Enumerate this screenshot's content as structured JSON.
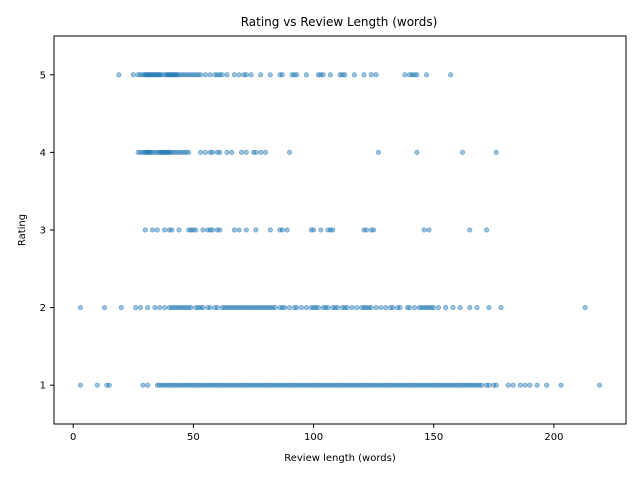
{
  "chart_data": {
    "type": "scatter",
    "title": "Rating vs Review Length (words)",
    "xlabel": "Review length (words)",
    "ylabel": "Rating",
    "xlim": [
      -8,
      230
    ],
    "ylim": [
      0.5,
      5.5
    ],
    "xticks": [
      "0",
      "50",
      "100",
      "150",
      "200"
    ],
    "yticks": [
      "1",
      "2",
      "3",
      "4",
      "5"
    ],
    "grid": false,
    "legend": "none",
    "point_color": "#1f77b4",
    "point_alpha": 0.45,
    "series": [
      {
        "rating": 5,
        "x": [
          19,
          25,
          27,
          28,
          29,
          30,
          30,
          31,
          31,
          32,
          32,
          33,
          33,
          34,
          34,
          35,
          35,
          36,
          36,
          37,
          38,
          39,
          39,
          40,
          40,
          41,
          41,
          42,
          42,
          43,
          43,
          44,
          45,
          46,
          47,
          48,
          49,
          50,
          51,
          52,
          53,
          55,
          57,
          59,
          60,
          61,
          62,
          64,
          67,
          69,
          71,
          72,
          74,
          78,
          82,
          86,
          87,
          91,
          92,
          93,
          97,
          102,
          103,
          104,
          107,
          111,
          112,
          113,
          117,
          121,
          124,
          126,
          138,
          140,
          141,
          142,
          143,
          147,
          157
        ]
      },
      {
        "rating": 4,
        "x": [
          27,
          28,
          29,
          30,
          30,
          31,
          31,
          32,
          32,
          33,
          34,
          35,
          36,
          36,
          37,
          37,
          38,
          38,
          39,
          39,
          40,
          40,
          41,
          42,
          43,
          44,
          45,
          46,
          47,
          48,
          53,
          55,
          57,
          58,
          60,
          61,
          64,
          66,
          70,
          72,
          75,
          76,
          78,
          80,
          90,
          127,
          143,
          162,
          176
        ]
      },
      {
        "rating": 3,
        "x": [
          30,
          33,
          35,
          38,
          40,
          41,
          44,
          48,
          49,
          50,
          51,
          54,
          56,
          57,
          58,
          60,
          61,
          67,
          69,
          72,
          76,
          82,
          86,
          87,
          89,
          99,
          100,
          103,
          106,
          107,
          108,
          121,
          122,
          124,
          125,
          146,
          148,
          165,
          172
        ]
      },
      {
        "rating": 2,
        "x": [
          3,
          13,
          20,
          26,
          28,
          31,
          34,
          36,
          38,
          40,
          41,
          42,
          43,
          44,
          45,
          46,
          47,
          48,
          49,
          51,
          52,
          53,
          54,
          56,
          57,
          59,
          60,
          62,
          63,
          64,
          65,
          66,
          67,
          68,
          69,
          70,
          71,
          72,
          73,
          74,
          75,
          76,
          77,
          78,
          79,
          80,
          81,
          82,
          83,
          84,
          86,
          87,
          88,
          90,
          92,
          93,
          95,
          97,
          99,
          100,
          101,
          102,
          104,
          105,
          106,
          108,
          109,
          110,
          112,
          113,
          114,
          116,
          118,
          120,
          121,
          122,
          123,
          124,
          126,
          128,
          130,
          132,
          133,
          135,
          136,
          139,
          140,
          142,
          144,
          145,
          146,
          147,
          148,
          149,
          150,
          152,
          155,
          158,
          161,
          165,
          168,
          173,
          178,
          213
        ]
      },
      {
        "rating": 1,
        "x": [
          3,
          10,
          14,
          15,
          29,
          31,
          35,
          36,
          37,
          38,
          39,
          40,
          41,
          42,
          43,
          44,
          45,
          46,
          47,
          48,
          49,
          50,
          51,
          52,
          53,
          54,
          55,
          56,
          57,
          58,
          59,
          60,
          61,
          62,
          63,
          64,
          65,
          66,
          67,
          68,
          69,
          70,
          71,
          72,
          73,
          74,
          75,
          76,
          77,
          78,
          79,
          80,
          81,
          82,
          83,
          84,
          85,
          86,
          87,
          88,
          89,
          90,
          91,
          92,
          93,
          94,
          95,
          96,
          97,
          98,
          99,
          100,
          101,
          102,
          103,
          104,
          105,
          106,
          107,
          108,
          109,
          110,
          111,
          112,
          113,
          114,
          115,
          116,
          117,
          118,
          119,
          120,
          121,
          122,
          123,
          124,
          125,
          126,
          127,
          128,
          129,
          130,
          131,
          132,
          133,
          134,
          135,
          136,
          137,
          138,
          139,
          140,
          141,
          142,
          143,
          144,
          145,
          146,
          147,
          148,
          149,
          150,
          151,
          152,
          153,
          154,
          155,
          156,
          157,
          158,
          159,
          160,
          161,
          162,
          163,
          164,
          165,
          166,
          167,
          168,
          169,
          170,
          172,
          173,
          175,
          176,
          181,
          183,
          186,
          188,
          190,
          193,
          197,
          203,
          219
        ]
      }
    ]
  }
}
